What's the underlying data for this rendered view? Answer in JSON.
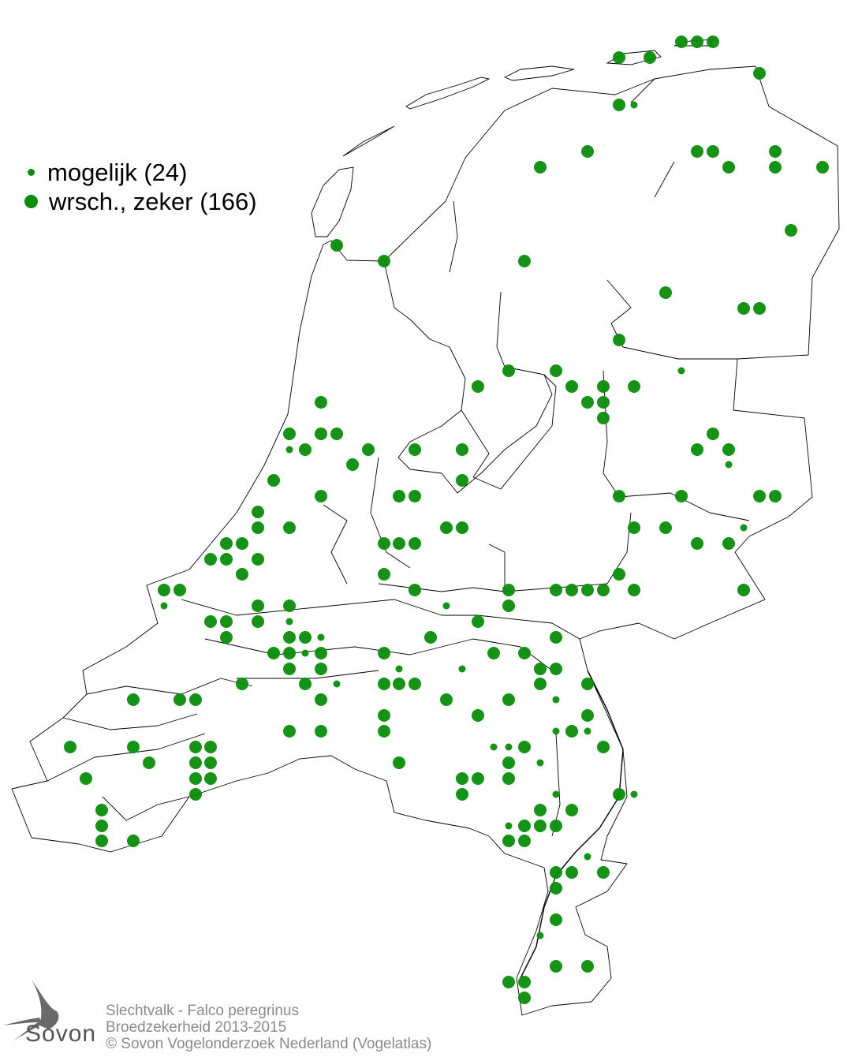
{
  "legend": {
    "items": [
      {
        "label": "mogelijk (24)",
        "category": "mogelijk",
        "count": 24,
        "symbol": "small-dot"
      },
      {
        "label": "wrsch., zeker (166)",
        "category": "wrsch., zeker",
        "count": 166,
        "symbol": "large-dot"
      }
    ]
  },
  "colors": {
    "dot": "#0a8c0a",
    "outline": "#000000",
    "footer_text": "#8a8a8a"
  },
  "footer": {
    "species": "Slechtvalk - Falco peregrinus",
    "subtitle": "Broedzekerheid 2013-2015",
    "copyright": "© Sovon Vogelonderzoek Nederland (Vogelatlas)"
  },
  "logo": {
    "text": "Sovon",
    "icon": "swallow-icon"
  }
}
